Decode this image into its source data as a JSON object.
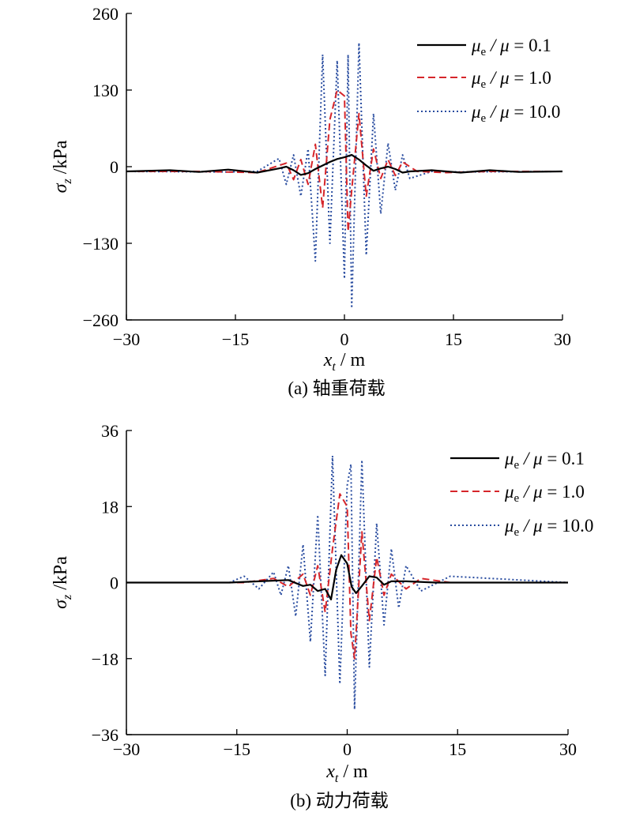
{
  "chart_data": [
    {
      "type": "line",
      "panel_caption": "(a) 轴重荷载",
      "xlabel": "x_t / m",
      "ylabel": "σ_z /kPa",
      "xlim": [
        -30,
        30
      ],
      "ylim": [
        -260,
        260
      ],
      "xticks": [
        "−30",
        "−15",
        "0",
        "15",
        "30"
      ],
      "yticks": [
        "260",
        "130",
        "0",
        "−130",
        "−260"
      ],
      "legend_position": "top-right",
      "series": [
        {
          "name": "μe / μ = 0.1",
          "style": "solid",
          "color": "#000000",
          "x": [
            -30,
            -24,
            -20,
            -16,
            -12,
            -9,
            -8,
            -7,
            -6,
            -5,
            -4,
            -3,
            -2,
            -1,
            0,
            1,
            2,
            3,
            4,
            5,
            6,
            7,
            8,
            9,
            12,
            16,
            20,
            24,
            30
          ],
          "y": [
            -8,
            -6,
            -9,
            -5,
            -10,
            -3,
            0,
            -6,
            -14,
            -11,
            -4,
            2,
            8,
            13,
            16,
            20,
            12,
            2,
            -7,
            -3,
            0,
            -4,
            -10,
            -8,
            -6,
            -10,
            -6,
            -9,
            -8
          ]
        },
        {
          "name": "μe / μ = 1.0",
          "style": "dashed",
          "color": "#d6262b",
          "x": [
            -30,
            -20,
            -12,
            -8,
            -7,
            -6,
            -5,
            -4,
            -3,
            -2,
            -1,
            0,
            0.5,
            1,
            2,
            3,
            4,
            5,
            6,
            7,
            8,
            10,
            14,
            20,
            30
          ],
          "y": [
            -8,
            -8,
            -10,
            6,
            -22,
            12,
            -30,
            38,
            -70,
            80,
            130,
            120,
            -110,
            -40,
            90,
            -50,
            30,
            -20,
            12,
            -15,
            8,
            -8,
            -10,
            -8,
            -8
          ]
        },
        {
          "name": "μe / μ = 10.0",
          "style": "dotted",
          "color": "#2a4da0",
          "x": [
            -30,
            -16,
            -12,
            -9,
            -8,
            -7,
            -6,
            -5,
            -4,
            -3,
            -2,
            -1,
            0,
            0.5,
            1,
            2,
            3,
            4,
            5,
            6,
            7,
            8,
            9,
            12,
            16,
            30
          ],
          "y": [
            -8,
            -9,
            -8,
            14,
            -30,
            20,
            -50,
            30,
            -160,
            190,
            -130,
            180,
            -190,
            190,
            -240,
            210,
            -150,
            90,
            -80,
            40,
            -40,
            20,
            -20,
            -8,
            -9,
            -8
          ]
        }
      ]
    },
    {
      "type": "line",
      "panel_caption": "(b) 动力荷载",
      "xlabel": "x_t / m",
      "ylabel": "σ_z /kPa",
      "xlim": [
        -30,
        30
      ],
      "ylim": [
        -36,
        36
      ],
      "xticks": [
        "−30",
        "−15",
        "0",
        "15",
        "30"
      ],
      "yticks": [
        "36",
        "18",
        "0",
        "−18",
        "−36"
      ],
      "legend_position": "top-right",
      "series": [
        {
          "name": "μe / μ = 0.1",
          "style": "solid",
          "color": "#000000",
          "x": [
            -30,
            -16,
            -12,
            -8,
            -6,
            -5,
            -4,
            -3,
            -2.2,
            -1.5,
            -0.8,
            0,
            0.6,
            1.2,
            2,
            3,
            4,
            5,
            6,
            8,
            12,
            16,
            30
          ],
          "y": [
            0,
            0,
            0.3,
            0.6,
            -0.8,
            -0.5,
            -2,
            -1.5,
            -4,
            3,
            6.5,
            4.5,
            -1,
            -2.5,
            -0.8,
            1.5,
            1.2,
            -0.5,
            0.3,
            0.3,
            0,
            0,
            0
          ]
        },
        {
          "name": "μe / μ = 1.0",
          "style": "dashed",
          "color": "#d6262b",
          "x": [
            -30,
            -20,
            -14,
            -10,
            -8,
            -6,
            -5,
            -4,
            -3,
            -2,
            -1,
            0,
            0.5,
            1,
            2,
            3,
            4,
            5,
            6,
            8,
            10,
            14,
            20,
            30
          ],
          "y": [
            0,
            0,
            0,
            1,
            -1,
            2,
            -3,
            4,
            -7,
            8,
            21,
            18,
            -12,
            -18,
            12,
            -9,
            6,
            -3,
            2,
            -1.5,
            1,
            0,
            0,
            0
          ]
        },
        {
          "name": "μe / μ = 10.0",
          "style": "dotted",
          "color": "#2a4da0",
          "x": [
            -30,
            -16,
            -14,
            -12,
            -10,
            -9,
            -8,
            -7,
            -6,
            -5,
            -4,
            -3,
            -2,
            -1,
            0,
            0.5,
            1,
            2,
            3,
            4,
            5,
            6,
            7,
            8,
            10,
            14,
            30
          ],
          "y": [
            0,
            0,
            1.5,
            -1.5,
            2.5,
            -3,
            4,
            -8,
            9,
            -14,
            16,
            -22,
            30,
            -24,
            23,
            28,
            -30,
            29,
            -20,
            14,
            -10,
            8,
            -6,
            4,
            -2,
            1.5,
            0
          ]
        }
      ]
    }
  ]
}
